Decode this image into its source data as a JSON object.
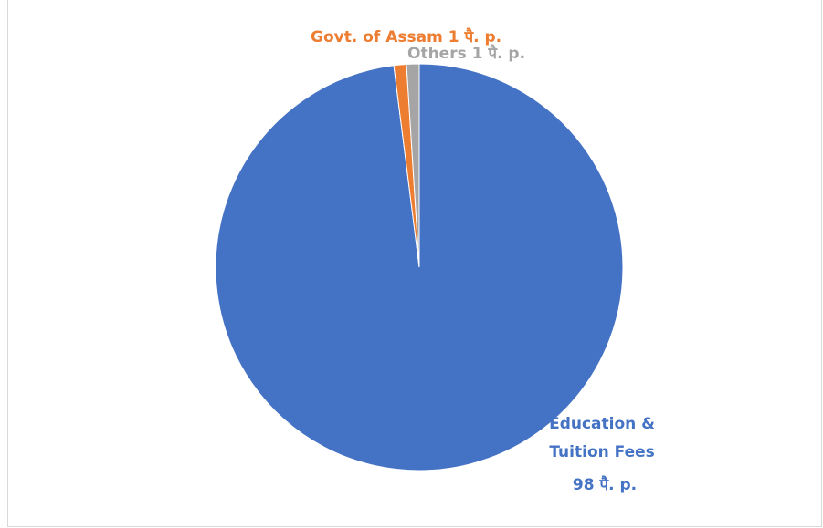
{
  "chart_data": {
    "type": "pie",
    "title": "",
    "slices": [
      {
        "label": "Education & Tuition Fees",
        "label_lines": [
          "Education &",
          "Tuition Fees",
          "98 पै. p."
        ],
        "value": 98,
        "color": "#4472c4",
        "label_color": "#4472c4"
      },
      {
        "label": "Govt. of Assam",
        "label_lines": [
          "Govt. of Assam 1 पै. p."
        ],
        "value": 1,
        "color": "#ed7d31",
        "label_color": "#ed7d31"
      },
      {
        "label": "Others",
        "label_lines": [
          "Others 1 पै. p."
        ],
        "value": 1,
        "color": "#a5a5a5",
        "label_color": "#a5a5a5"
      }
    ]
  }
}
